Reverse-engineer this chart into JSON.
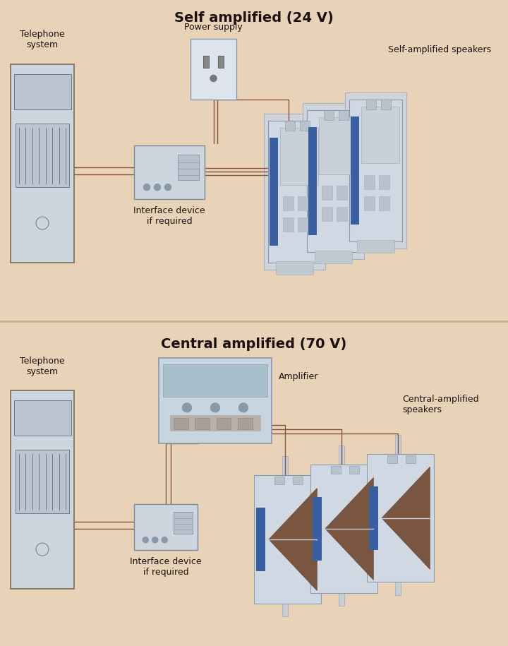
{
  "bg_color": "#e8d3b8",
  "title1": "Self amplified (24 V)",
  "title2": "Central amplified (70 V)",
  "label_telephone": "Telephone\nsystem",
  "label_interface": "Interface device\nif required",
  "label_power": "Power supply",
  "label_self_speakers": "Self-amplified speakers",
  "label_amplifier": "Amplifier",
  "label_central_speakers": "Central-amplified speakers",
  "device_color": "#cdd5de",
  "device_border": "#8899aa",
  "tel_border": "#6a7a8a",
  "speaker_blue": "#3a5fa0",
  "speaker_bg": "#d0d8e4",
  "speaker_cone": "#7a5540",
  "speaker_mount": "#c8ccd4",
  "wire_color": "#8a5040",
  "power_color": "#dde4ee",
  "amp_color": "#c8d5de",
  "amp_top": "#a8c0cc",
  "title_fontsize": 14,
  "label_fontsize": 9,
  "divider_color": "#c8b090"
}
